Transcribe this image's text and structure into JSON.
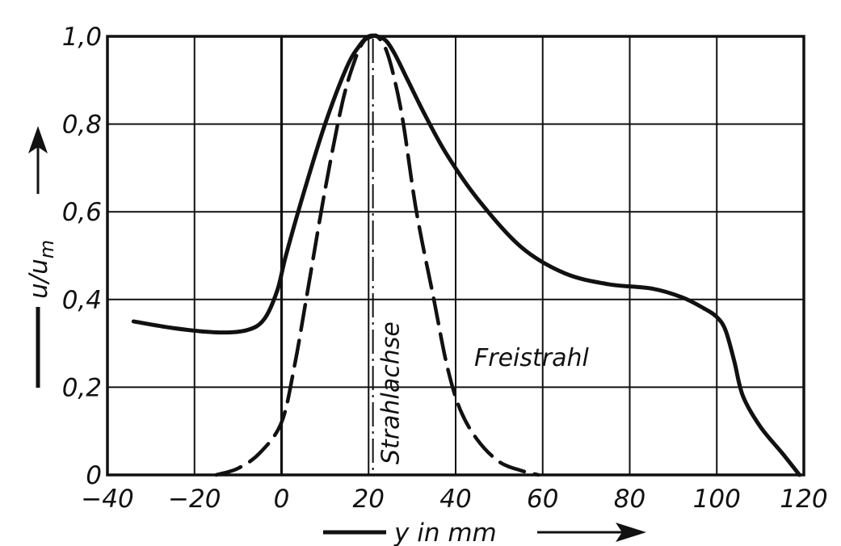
{
  "chart_data": {
    "type": "line",
    "title": "",
    "xlabel": "y in mm",
    "ylabel": "u/u_m",
    "ylabel_main": "u/u",
    "ylabel_sub": "m",
    "xlim": [
      -40,
      120
    ],
    "ylim": [
      0,
      1.0
    ],
    "grid": true,
    "x_ticks": [
      -40,
      -20,
      0,
      20,
      40,
      60,
      80,
      100,
      120
    ],
    "x_tick_labels": [
      "−40",
      "−20",
      "0",
      "20",
      "40",
      "60",
      "80",
      "100",
      "120"
    ],
    "y_ticks": [
      0,
      0.2,
      0.4,
      0.6,
      0.8,
      1.0
    ],
    "y_tick_labels": [
      "0",
      "0,2",
      "0,4",
      "0,6",
      "0,8",
      "1,0"
    ],
    "series": [
      {
        "style": "solid",
        "x": [
          -34,
          -25,
          -15,
          -8,
          -4,
          -1,
          1,
          5,
          10,
          15,
          18,
          20,
          22,
          24,
          26,
          29,
          33,
          38,
          45,
          55,
          65,
          75,
          85,
          92,
          97,
          100,
          102,
          104,
          106,
          110,
          115,
          119
        ],
        "y": [
          0.35,
          0.335,
          0.325,
          0.33,
          0.355,
          0.42,
          0.5,
          0.64,
          0.8,
          0.93,
          0.98,
          1.0,
          1.0,
          0.99,
          0.96,
          0.9,
          0.82,
          0.73,
          0.63,
          0.52,
          0.46,
          0.435,
          0.425,
          0.405,
          0.38,
          0.36,
          0.33,
          0.26,
          0.18,
          0.11,
          0.05,
          0.0
        ]
      },
      {
        "name": "Freistrahl",
        "style": "dashed",
        "x": [
          -15,
          -10,
          -5,
          0,
          3,
          6,
          10,
          14,
          17,
          19,
          21,
          22,
          24,
          26,
          28,
          31,
          35,
          38,
          41,
          45,
          50,
          55,
          59
        ],
        "y": [
          0.0,
          0.015,
          0.05,
          0.12,
          0.25,
          0.42,
          0.65,
          0.85,
          0.95,
          0.99,
          1.0,
          1.0,
          0.97,
          0.9,
          0.8,
          0.6,
          0.4,
          0.25,
          0.15,
          0.08,
          0.03,
          0.01,
          0.0
        ]
      }
    ],
    "reference_line": {
      "x": 21,
      "label": "Strahlachse"
    }
  }
}
